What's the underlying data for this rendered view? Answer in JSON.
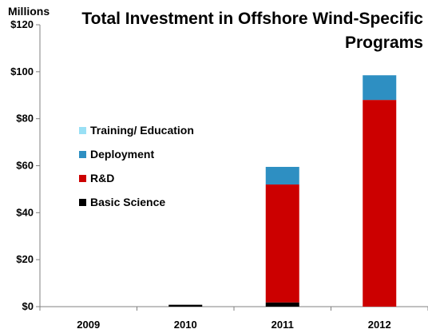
{
  "chart_data": {
    "type": "bar",
    "stacked": true,
    "title": "Total Investment in Offshore Wind-Specific Programs",
    "title_lines": [
      "Total Investment in Offshore Wind-Specific",
      "Programs"
    ],
    "ylabel": "Millions",
    "xlabel": "",
    "ylim": [
      0,
      120
    ],
    "yticks": [
      0,
      20,
      40,
      60,
      80,
      100,
      120
    ],
    "ytick_labels": [
      "$0",
      "$20",
      "$40",
      "$60",
      "$80",
      "$100",
      "$120"
    ],
    "categories": [
      "2009",
      "2010",
      "2011",
      "2012"
    ],
    "series": [
      {
        "name": "Basic Science",
        "color": "#000000",
        "values": [
          0,
          0.8,
          1.8,
          0
        ]
      },
      {
        "name": "R&D",
        "color": "#cc0000",
        "values": [
          0,
          0,
          50.2,
          88
        ]
      },
      {
        "name": "Deployment",
        "color": "#2e8fc2",
        "values": [
          0,
          0,
          7.5,
          10.5
        ]
      },
      {
        "name": "Training/ Education",
        "color": "#99e0f5",
        "values": [
          0,
          0,
          0,
          0
        ]
      }
    ],
    "legend_order": [
      "Training/ Education",
      "Deployment",
      "R&D",
      "Basic Science"
    ],
    "legend_position": "left",
    "grid": false
  }
}
